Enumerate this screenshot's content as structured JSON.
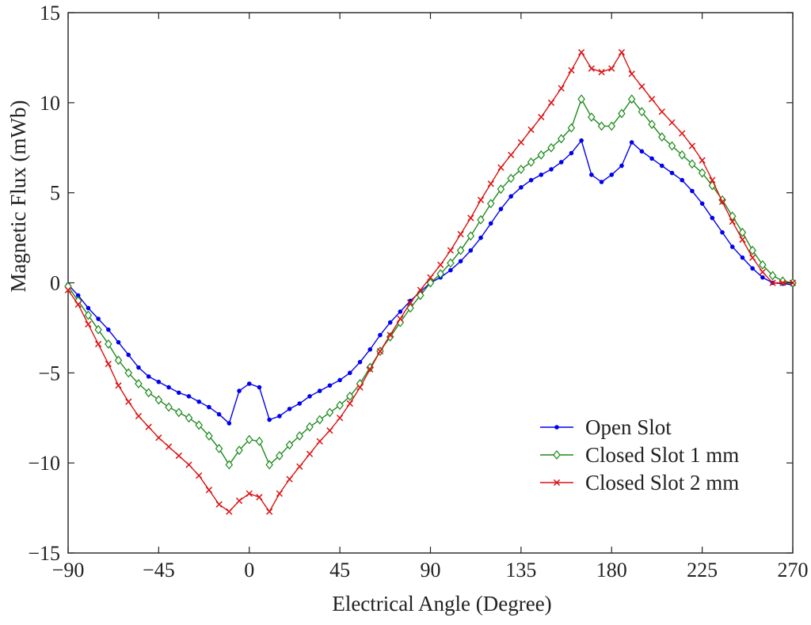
{
  "chart_data": {
    "type": "line",
    "title": "",
    "xlabel": "Electrical Angle (Degree)",
    "ylabel": "Magnetic Flux (mWb)",
    "xlim": [
      -90,
      270
    ],
    "ylim": [
      -15,
      15
    ],
    "xticks": [
      -90,
      -45,
      0,
      45,
      90,
      135,
      180,
      225,
      270
    ],
    "yticks": [
      -15,
      -10,
      -5,
      0,
      5,
      10,
      15
    ],
    "xtick_labels": [
      "−90",
      "−45",
      "0",
      "45",
      "90",
      "135",
      "180",
      "225",
      "270"
    ],
    "ytick_labels": [
      "−15",
      "−10",
      "−5",
      "0",
      "5",
      "10",
      "15"
    ],
    "legend_position": "bottom-right",
    "x": [
      -90,
      -85,
      -80,
      -75,
      -70,
      -65,
      -60,
      -55,
      -50,
      -45,
      -40,
      -35,
      -30,
      -25,
      -20,
      -15,
      -10,
      -5,
      0,
      5,
      10,
      15,
      20,
      25,
      30,
      35,
      40,
      45,
      50,
      55,
      60,
      65,
      70,
      75,
      80,
      85,
      90,
      95,
      100,
      105,
      110,
      115,
      120,
      125,
      130,
      135,
      140,
      145,
      150,
      155,
      160,
      165,
      170,
      175,
      180,
      185,
      190,
      195,
      200,
      205,
      210,
      215,
      220,
      225,
      230,
      235,
      240,
      245,
      250,
      255,
      260,
      265,
      270
    ],
    "series": [
      {
        "name": "Open Slot",
        "color": "#0000ee",
        "marker": "dot",
        "values": [
          -0.2,
          -0.8,
          -1.5,
          -2.1,
          -2.6,
          -3.3,
          -4.0,
          -4.6,
          -5.1,
          -5.5,
          -5.8,
          -6.1,
          -6.3,
          -6.6,
          -6.9,
          -7.3,
          -7.8,
          -6.5,
          -5.6,
          -5.8,
          -7.6,
          -7.5,
          -7.1,
          -6.7,
          -6.3,
          -6.0,
          -5.7,
          -5.4,
          -5.0,
          -4.5,
          -3.8,
          -3.0,
          -2.3,
          -1.7,
          -1.1,
          -0.6,
          -0.15,
          0.3,
          0.7,
          1.2,
          1.8,
          2.5,
          3.3,
          4.1,
          4.8,
          5.3,
          5.7,
          6.1,
          6.4,
          6.8,
          7.3,
          7.9,
          6.0,
          5.6,
          6.0,
          6.5,
          7.8,
          7.3,
          6.9,
          6.4,
          6.0,
          5.6,
          5.0,
          4.4,
          3.6,
          2.8,
          2.0,
          1.4,
          0.8,
          0.3,
          0.0,
          -0.1,
          -0.3
        ],
        "display": [
          -0.1,
          -0.7,
          -1.4,
          -2.0,
          -2.6,
          -3.3,
          -4.0,
          -4.7,
          -5.2,
          -5.5,
          -5.8,
          -6.1,
          -6.3,
          -6.6,
          -6.9,
          -7.3,
          -7.8,
          -6.0,
          -5.6,
          -5.8,
          -7.6,
          -7.4,
          -7.0,
          -6.7,
          -6.3,
          -6.0,
          -5.7,
          -5.4,
          -5.0,
          -4.4,
          -3.7,
          -2.9,
          -2.2,
          -1.6,
          -1.0,
          -0.5,
          0.0,
          0.3,
          0.7,
          1.2,
          1.8,
          2.5,
          3.3,
          4.1,
          4.8,
          5.3,
          5.7,
          6.0,
          6.3,
          6.7,
          7.2,
          7.9,
          6.0,
          5.6,
          6.0,
          6.5,
          7.8,
          7.3,
          6.9,
          6.5,
          6.1,
          5.7,
          5.1,
          4.4,
          3.6,
          2.8,
          2.0,
          1.4,
          0.8,
          0.3,
          0.0,
          -0.05,
          -0.1
        ]
      },
      {
        "name": "Closed Slot 1 mm",
        "color": "#1a8a1a",
        "marker": "diamond",
        "values": [
          -0.2,
          -1.0,
          -1.8,
          -2.6,
          -3.4,
          -4.3,
          -5.0,
          -5.6,
          -6.1,
          -6.5,
          -6.9,
          -7.2,
          -7.5,
          -7.9,
          -8.5,
          -9.2,
          -10.1,
          -9.3,
          -8.7,
          -8.8,
          -10.1,
          -9.6,
          -9.0,
          -8.5,
          -8.0,
          -7.6,
          -7.2,
          -6.8,
          -6.3,
          -5.6,
          -4.7,
          -3.8,
          -3.0,
          -2.2,
          -1.4,
          -0.7,
          0.0,
          0.5,
          1.1,
          1.8,
          2.6,
          3.5,
          4.4,
          5.2,
          5.8,
          6.3,
          6.7,
          7.1,
          7.5,
          8.0,
          8.6,
          10.2,
          9.2,
          8.7,
          8.7,
          9.4,
          10.2,
          9.5,
          8.8,
          8.1,
          7.6,
          7.1,
          6.6,
          6.1,
          5.4,
          4.6,
          3.7,
          2.8,
          1.8,
          1.0,
          0.4,
          0.1,
          0.0
        ],
        "display": [
          -0.2,
          -1.0,
          -1.8,
          -2.6,
          -3.4,
          -4.3,
          -5.0,
          -5.6,
          -6.1,
          -6.5,
          -6.9,
          -7.2,
          -7.5,
          -7.9,
          -8.5,
          -9.2,
          -10.1,
          -9.3,
          -8.7,
          -8.8,
          -10.1,
          -9.6,
          -9.0,
          -8.5,
          -8.0,
          -7.6,
          -7.2,
          -6.8,
          -6.3,
          -5.6,
          -4.7,
          -3.8,
          -3.0,
          -2.2,
          -1.4,
          -0.7,
          0.0,
          0.5,
          1.1,
          1.8,
          2.6,
          3.5,
          4.4,
          5.2,
          5.8,
          6.3,
          6.7,
          7.1,
          7.5,
          8.0,
          8.6,
          10.2,
          9.2,
          8.7,
          8.7,
          9.4,
          10.2,
          9.5,
          8.8,
          8.1,
          7.6,
          7.1,
          6.6,
          6.1,
          5.4,
          4.6,
          3.7,
          2.8,
          1.8,
          1.0,
          0.4,
          0.1,
          0.0
        ]
      },
      {
        "name": "Closed Slot 2 mm",
        "color": "#dd1111",
        "marker": "x",
        "values": [
          -0.4,
          -1.2,
          -2.3,
          -3.4,
          -4.5,
          -5.7,
          -6.6,
          -7.4,
          -8.0,
          -8.6,
          -9.1,
          -9.6,
          -10.1,
          -10.7,
          -11.5,
          -12.3,
          -12.7,
          -12.1,
          -11.7,
          -11.9,
          -12.7,
          -11.7,
          -10.9,
          -10.2,
          -9.5,
          -8.8,
          -8.2,
          -7.5,
          -6.7,
          -5.8,
          -4.8,
          -3.8,
          -2.9,
          -2.0,
          -1.1,
          -0.4,
          0.3,
          1.0,
          1.8,
          2.7,
          3.6,
          4.6,
          5.5,
          6.4,
          7.1,
          7.8,
          8.5,
          9.2,
          10.0,
          10.8,
          11.8,
          12.8,
          11.9,
          11.7,
          11.9,
          12.8,
          11.6,
          10.9,
          10.2,
          9.5,
          8.9,
          8.3,
          7.6,
          6.8,
          5.7,
          4.5,
          3.4,
          2.4,
          1.4,
          0.6,
          0.0,
          0.0,
          0.0
        ],
        "display": [
          -0.4,
          -1.2,
          -2.3,
          -3.4,
          -4.5,
          -5.7,
          -6.6,
          -7.4,
          -8.0,
          -8.6,
          -9.1,
          -9.6,
          -10.1,
          -10.7,
          -11.5,
          -12.3,
          -12.7,
          -12.1,
          -11.7,
          -11.9,
          -12.7,
          -11.7,
          -10.9,
          -10.2,
          -9.5,
          -8.8,
          -8.2,
          -7.5,
          -6.7,
          -5.8,
          -4.8,
          -3.8,
          -2.9,
          -2.0,
          -1.1,
          -0.4,
          0.3,
          1.0,
          1.8,
          2.7,
          3.6,
          4.6,
          5.5,
          6.4,
          7.1,
          7.8,
          8.5,
          9.2,
          10.0,
          10.8,
          11.8,
          12.8,
          11.9,
          11.7,
          11.9,
          12.8,
          11.6,
          10.9,
          10.2,
          9.5,
          8.9,
          8.3,
          7.6,
          6.8,
          5.7,
          4.5,
          3.4,
          2.4,
          1.4,
          0.6,
          0.0,
          0.0,
          0.0
        ]
      }
    ]
  }
}
